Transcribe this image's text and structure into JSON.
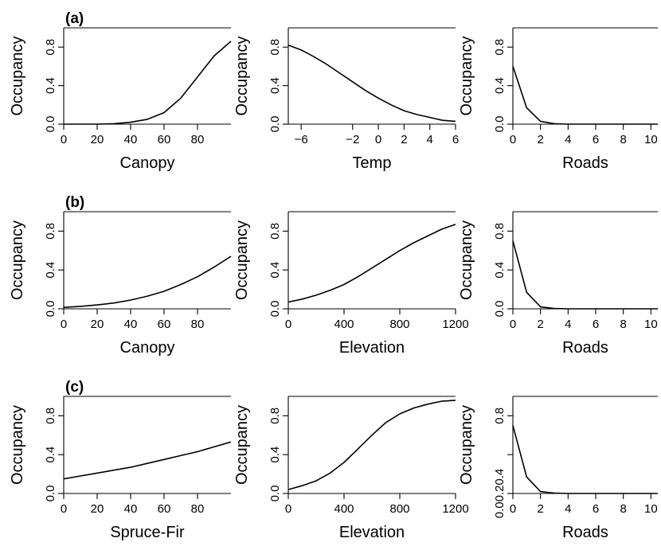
{
  "chart_data": [
    {
      "type": "line",
      "panel_label": "(a)",
      "xlabel": "Canopy",
      "ylabel": "Occupancy",
      "xlim": [
        0,
        100
      ],
      "ylim": [
        0,
        1
      ],
      "x_ticks": [
        0,
        20,
        40,
        60,
        80
      ],
      "x_tick_labels": [
        "0",
        "20",
        "40",
        "60",
        "80"
      ],
      "y_ticks": [
        0,
        0.4,
        0.8
      ],
      "y_tick_labels": [
        "0.0",
        "0.4",
        "0.8"
      ],
      "x": [
        0,
        10,
        20,
        30,
        40,
        50,
        60,
        70,
        80,
        90,
        100
      ],
      "y": [
        0.0,
        0.0,
        0.0,
        0.005,
        0.02,
        0.05,
        0.12,
        0.27,
        0.49,
        0.71,
        0.86
      ]
    },
    {
      "type": "line",
      "panel_label": "",
      "xlabel": "Temp",
      "ylabel": "Occupancy",
      "xlim": [
        -7,
        6
      ],
      "ylim": [
        0,
        1
      ],
      "x_ticks": [
        -6,
        -2,
        0,
        2,
        4,
        6
      ],
      "x_tick_labels": [
        "−6",
        "−2",
        "0",
        "2",
        "4",
        "6"
      ],
      "y_ticks": [
        0,
        0.4,
        0.8
      ],
      "y_tick_labels": [
        "0.0",
        "0.4",
        "0.8"
      ],
      "x": [
        -7,
        -6,
        -5,
        -4,
        -3,
        -2,
        -1,
        0,
        1,
        2,
        3,
        4,
        5,
        6
      ],
      "y": [
        0.82,
        0.77,
        0.7,
        0.62,
        0.53,
        0.44,
        0.35,
        0.27,
        0.2,
        0.14,
        0.1,
        0.07,
        0.04,
        0.03
      ]
    },
    {
      "type": "line",
      "panel_label": "",
      "xlabel": "Roads",
      "ylabel": "Occupancy",
      "xlim": [
        0,
        10.5
      ],
      "ylim": [
        0,
        1
      ],
      "x_ticks": [
        0,
        2,
        4,
        6,
        8,
        10
      ],
      "x_tick_labels": [
        "0",
        "2",
        "4",
        "6",
        "8",
        "10"
      ],
      "y_ticks": [
        0,
        0.4,
        0.8
      ],
      "y_tick_labels": [
        "0.0",
        "0.4",
        "0.8"
      ],
      "x": [
        0,
        1,
        2,
        3,
        4,
        5,
        6,
        7,
        8,
        9,
        10,
        10.5
      ],
      "y": [
        0.6,
        0.17,
        0.03,
        0.005,
        0.0,
        0.0,
        0.0,
        0.0,
        0.0,
        0.0,
        0.0,
        0.0
      ]
    },
    {
      "type": "line",
      "panel_label": "(b)",
      "xlabel": "Canopy",
      "ylabel": "Occupancy",
      "xlim": [
        0,
        100
      ],
      "ylim": [
        0,
        1
      ],
      "x_ticks": [
        0,
        20,
        40,
        60,
        80
      ],
      "x_tick_labels": [
        "0",
        "20",
        "40",
        "60",
        "80"
      ],
      "y_ticks": [
        0,
        0.4,
        0.8
      ],
      "y_tick_labels": [
        "0.0",
        "0.4",
        "0.8"
      ],
      "x": [
        0,
        10,
        20,
        30,
        40,
        50,
        60,
        70,
        80,
        90,
        100
      ],
      "y": [
        0.015,
        0.025,
        0.04,
        0.06,
        0.09,
        0.13,
        0.18,
        0.25,
        0.33,
        0.43,
        0.54
      ]
    },
    {
      "type": "line",
      "panel_label": "",
      "xlabel": "Elevation",
      "ylabel": "Occupancy",
      "xlim": [
        0,
        1200
      ],
      "ylim": [
        0,
        1
      ],
      "x_ticks": [
        0,
        400,
        800,
        1200
      ],
      "x_tick_labels": [
        "0",
        "400",
        "800",
        "1200"
      ],
      "y_ticks": [
        0,
        0.4,
        0.8
      ],
      "y_tick_labels": [
        "0.0",
        "0.4",
        "0.8"
      ],
      "x": [
        0,
        100,
        200,
        300,
        400,
        500,
        600,
        700,
        800,
        900,
        1000,
        1100,
        1200
      ],
      "y": [
        0.07,
        0.1,
        0.14,
        0.19,
        0.25,
        0.33,
        0.42,
        0.51,
        0.6,
        0.68,
        0.75,
        0.82,
        0.87
      ]
    },
    {
      "type": "line",
      "panel_label": "",
      "xlabel": "Roads",
      "ylabel": "Occupancy",
      "xlim": [
        0,
        10.5
      ],
      "ylim": [
        0,
        1
      ],
      "x_ticks": [
        0,
        2,
        4,
        6,
        8,
        10
      ],
      "x_tick_labels": [
        "0",
        "2",
        "4",
        "6",
        "8",
        "10"
      ],
      "y_ticks": [
        0,
        0.4,
        0.8
      ],
      "y_tick_labels": [
        "0.0",
        "0.4",
        "0.8"
      ],
      "x": [
        0,
        1,
        2,
        3,
        4,
        5,
        6,
        7,
        8,
        9,
        10,
        10.5
      ],
      "y": [
        0.7,
        0.17,
        0.02,
        0.003,
        0.0,
        0.0,
        0.0,
        0.0,
        0.0,
        0.0,
        0.0,
        0.0
      ]
    },
    {
      "type": "line",
      "panel_label": "(c)",
      "xlabel": "Spruce-Fir",
      "ylabel": "Occupancy",
      "xlim": [
        0,
        100
      ],
      "ylim": [
        0,
        1
      ],
      "x_ticks": [
        0,
        20,
        40,
        60,
        80
      ],
      "x_tick_labels": [
        "0",
        "20",
        "40",
        "60",
        "80"
      ],
      "y_ticks": [
        0,
        0.4,
        0.8
      ],
      "y_tick_labels": [
        "0.0",
        "0.4",
        "0.8"
      ],
      "x": [
        0,
        10,
        20,
        30,
        40,
        50,
        60,
        70,
        80,
        90,
        100
      ],
      "y": [
        0.15,
        0.18,
        0.21,
        0.24,
        0.27,
        0.31,
        0.35,
        0.39,
        0.43,
        0.48,
        0.53
      ]
    },
    {
      "type": "line",
      "panel_label": "",
      "xlabel": "Elevation",
      "ylabel": "Occupancy",
      "xlim": [
        0,
        1200
      ],
      "ylim": [
        0,
        1
      ],
      "x_ticks": [
        0,
        400,
        800,
        1200
      ],
      "x_tick_labels": [
        "0",
        "400",
        "800",
        "1200"
      ],
      "y_ticks": [
        0,
        0.4,
        0.8
      ],
      "y_tick_labels": [
        "0.0",
        "0.4",
        "0.8"
      ],
      "x": [
        0,
        100,
        200,
        300,
        400,
        500,
        600,
        700,
        800,
        900,
        1000,
        1100,
        1200
      ],
      "y": [
        0.04,
        0.08,
        0.13,
        0.21,
        0.32,
        0.46,
        0.6,
        0.73,
        0.82,
        0.88,
        0.92,
        0.95,
        0.96
      ]
    },
    {
      "type": "line",
      "panel_label": "",
      "xlabel": "Roads",
      "ylabel": "Occupancy",
      "xlim": [
        0,
        10.5
      ],
      "ylim": [
        0,
        1
      ],
      "x_ticks": [
        0,
        2,
        4,
        6,
        8,
        10
      ],
      "x_tick_labels": [
        "0",
        "2",
        "4",
        "6",
        "8",
        "10"
      ],
      "y_ticks": [
        0,
        0.4,
        0.8
      ],
      "y_tick_labels": [
        "0.00.20.4",
        "",
        "0.8"
      ],
      "x": [
        0,
        1,
        2,
        3,
        4,
        5,
        6,
        7,
        8,
        9,
        10,
        10.5
      ],
      "y": [
        0.7,
        0.17,
        0.02,
        0.003,
        0.0,
        0.0,
        0.0,
        0.0,
        0.0,
        0.0,
        0.0,
        0.0
      ]
    }
  ]
}
